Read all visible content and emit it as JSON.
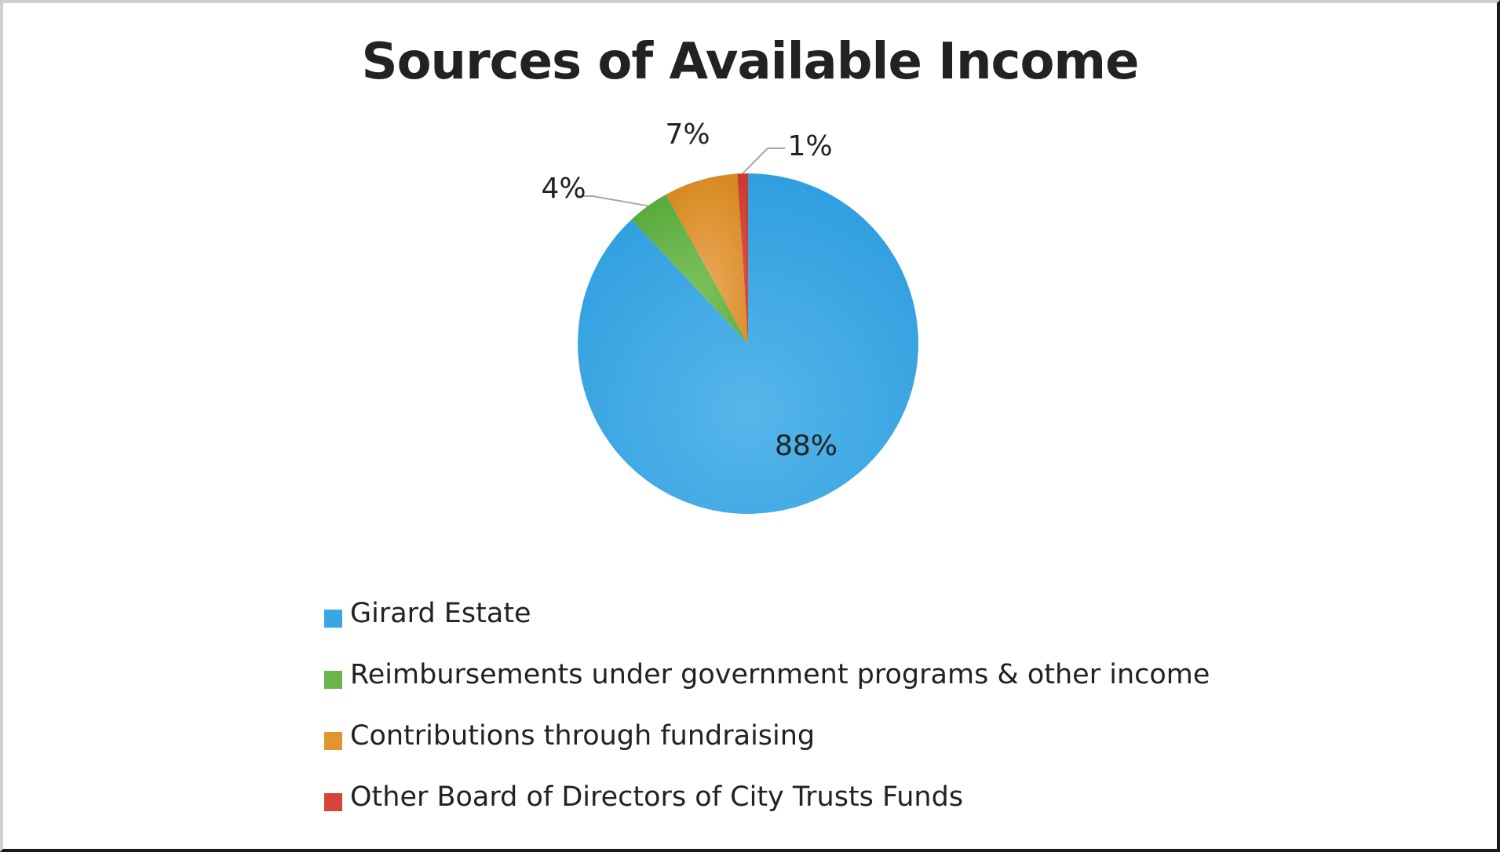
{
  "chart_data": {
    "type": "pie",
    "title": "Sources of Available Income",
    "categories": [
      "Girard Estate",
      "Reimbursements under government programs & other income",
      "Contributions through fundraising",
      "Other Board of Directors of City Trusts Funds"
    ],
    "values": [
      88,
      4,
      7,
      1
    ],
    "data_labels": [
      "88%",
      "4%",
      "7%",
      "1%"
    ],
    "colors": [
      "#3aa6e2",
      "#6ab54a",
      "#e0962f",
      "#d6443a"
    ],
    "legend_position": "bottom",
    "start_angle": "12 o'clock, clockwise"
  }
}
